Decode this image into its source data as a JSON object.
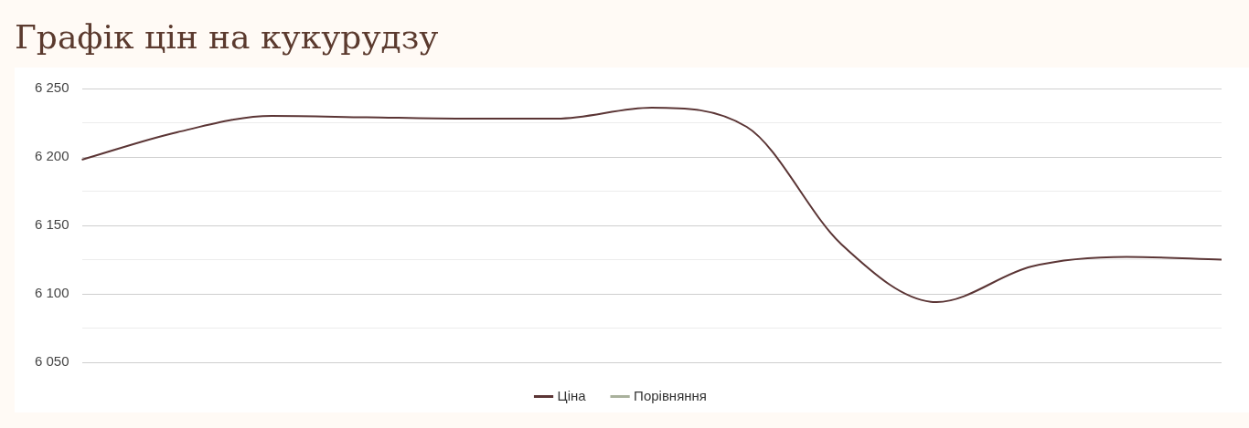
{
  "chart_data": {
    "type": "line",
    "title": "Графік цін на кукурудзу",
    "categories": [
      null,
      null,
      null,
      null,
      null,
      null,
      null,
      null,
      null,
      null,
      null,
      null,
      null
    ],
    "series": [
      {
        "name": "Ціна",
        "color": "#5b3535",
        "values": [
          6198,
          6218,
          6230,
          6229,
          6228,
          6228,
          6236,
          6222,
          6136,
          6094,
          6120,
          6127,
          6125
        ]
      },
      {
        "name": "Порівняння",
        "color": "#a9b19c",
        "values": [
          null,
          null,
          null,
          null,
          null,
          null,
          null,
          null,
          null,
          null,
          null,
          null,
          null
        ]
      }
    ],
    "ylim": [
      6050,
      6250
    ],
    "yticks": [
      {
        "value": 6050,
        "label": "6 050"
      },
      {
        "value": 6075,
        "label": null
      },
      {
        "value": 6100,
        "label": "6 100"
      },
      {
        "value": 6125,
        "label": null
      },
      {
        "value": 6150,
        "label": "6 150"
      },
      {
        "value": 6175,
        "label": null
      },
      {
        "value": 6200,
        "label": "6 200"
      },
      {
        "value": 6225,
        "label": null
      },
      {
        "value": 6250,
        "label": "6 250"
      }
    ],
    "grid": "y",
    "legend": "bottom",
    "tick_labels": "y",
    "marker": "none",
    "line_style": "solid"
  }
}
